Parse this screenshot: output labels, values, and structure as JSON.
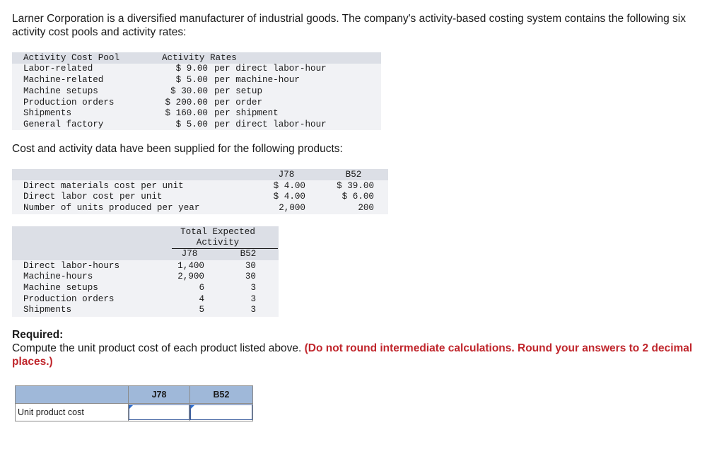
{
  "intro": "Larner Corporation is a diversified manufacturer of industrial goods. The company's activity-based costing system contains the following six activity cost pools and activity rates:",
  "rates_table": {
    "header_pool": "Activity Cost Pool",
    "header_rates": "Activity Rates",
    "rows": [
      {
        "pool": "Labor-related",
        "rate": "$ 9.00",
        "unit": "per direct labor-hour"
      },
      {
        "pool": "Machine-related",
        "rate": "$ 5.00",
        "unit": "per machine-hour"
      },
      {
        "pool": "Machine setups",
        "rate": "$ 30.00",
        "unit": "per setup"
      },
      {
        "pool": "Production orders",
        "rate": "$ 200.00",
        "unit": "per order"
      },
      {
        "pool": "Shipments",
        "rate": "$ 160.00",
        "unit": "per shipment"
      },
      {
        "pool": "General factory",
        "rate": "$ 5.00",
        "unit": "per direct labor-hour"
      }
    ]
  },
  "cost_intro": "Cost and activity data have been supplied for the following products:",
  "cost_table": {
    "col_j78": "J78",
    "col_b52": "B52",
    "rows": [
      {
        "label": "Direct materials cost per unit",
        "j78": "$ 4.00",
        "b52": "$ 39.00"
      },
      {
        "label": "Direct labor cost per unit",
        "j78": "$ 4.00",
        "b52": "$ 6.00"
      },
      {
        "label": "Number of units produced per year",
        "j78": "2,000",
        "b52": "200"
      }
    ]
  },
  "activity_table": {
    "header_line1": "Total Expected",
    "header_line2": "Activity",
    "col_j78": "J78",
    "col_b52": "B52",
    "rows": [
      {
        "label": "Direct labor-hours",
        "j78": "1,400",
        "b52": "30"
      },
      {
        "label": "Machine-hours",
        "j78": "2,900",
        "b52": "30"
      },
      {
        "label": "Machine setups",
        "j78": "6",
        "b52": "3"
      },
      {
        "label": "Production orders",
        "j78": "4",
        "b52": "3"
      },
      {
        "label": "Shipments",
        "j78": "5",
        "b52": "3"
      }
    ]
  },
  "required": {
    "title": "Required:",
    "text": "Compute the unit product cost of each product listed above. ",
    "note": "(Do not round intermediate calculations. Round your answers to 2 decimal places.)"
  },
  "answer_table": {
    "col_j78": "J78",
    "col_b52": "B52",
    "row_label": "Unit product cost",
    "j78_value": "",
    "b52_value": ""
  }
}
